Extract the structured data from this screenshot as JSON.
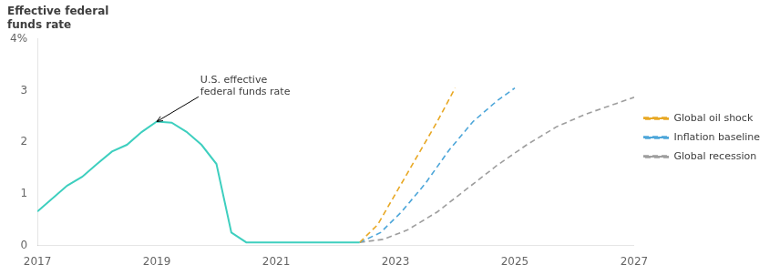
{
  "chart_data": {
    "type": "line",
    "title": "Effective federal\nfunds rate",
    "xlim": [
      2017,
      2027
    ],
    "xticks": [
      2017,
      2019,
      2021,
      2023,
      2025,
      2027
    ],
    "ylim": [
      0,
      4
    ],
    "yticks": [
      0,
      1,
      2,
      3,
      {
        "value": 4,
        "label": "4%"
      }
    ],
    "grid": false,
    "legend": "right",
    "series": [
      {
        "color": "#3ecfbf",
        "line_style": "solid",
        "x": [
          2017.0,
          2017.5,
          2017.75,
          2018.0,
          2018.25,
          2018.5,
          2018.75,
          2019.0,
          2019.25,
          2019.5,
          2019.75,
          2020.0,
          2020.25,
          2020.5,
          2020.75,
          2021.0,
          2021.5,
          2022.0,
          2022.4
        ],
        "values": [
          0.66,
          1.16,
          1.33,
          1.58,
          1.82,
          1.95,
          2.2,
          2.4,
          2.38,
          2.2,
          1.95,
          1.58,
          0.25,
          0.06,
          0.06,
          0.06,
          0.06,
          0.06,
          0.06
        ]
      },
      {
        "name": "Global oil shock",
        "color": "#e8a824",
        "line_style": "dashed",
        "x": [
          2022.4,
          2022.7,
          2023.0,
          2023.35,
          2023.7,
          2024.0
        ],
        "values": [
          0.06,
          0.4,
          1.0,
          1.7,
          2.4,
          3.05
        ]
      },
      {
        "name": "Inflation baseline",
        "color": "#4da6d9",
        "line_style": "dashed",
        "x": [
          2022.4,
          2022.75,
          2023.1,
          2023.5,
          2023.9,
          2024.3,
          2024.7,
          2025.0
        ],
        "values": [
          0.06,
          0.25,
          0.65,
          1.2,
          1.85,
          2.4,
          2.8,
          3.05
        ]
      },
      {
        "name": "Global recession",
        "color": "#9e9e9e",
        "line_style": "dashed",
        "x": [
          2022.4,
          2022.8,
          2023.2,
          2023.7,
          2024.2,
          2024.7,
          2025.2,
          2025.7,
          2026.2,
          2026.7,
          2027.0
        ],
        "values": [
          0.06,
          0.12,
          0.3,
          0.65,
          1.1,
          1.55,
          1.95,
          2.3,
          2.55,
          2.75,
          2.87
        ]
      }
    ],
    "annotations": [
      {
        "text": "U.S. effective\nfederal funds rate",
        "x": 2019.0,
        "y": 2.4,
        "text_x": 2019.7,
        "text_y": 2.88
      }
    ]
  }
}
